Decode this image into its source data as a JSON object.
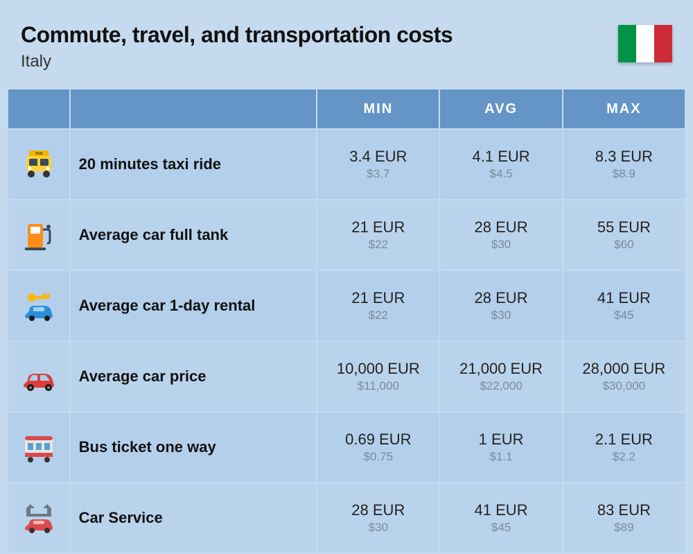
{
  "header": {
    "title": "Commute, travel, and transportation costs",
    "subtitle": "Italy"
  },
  "flag": {
    "colors": [
      "#009246",
      "#ffffff",
      "#ce2b37"
    ]
  },
  "columns": {
    "min": "MIN",
    "avg": "AVG",
    "max": "MAX"
  },
  "colors": {
    "page_bg": "#c5daef",
    "header_bg": "#6495c6",
    "header_text": "#ffffff",
    "row_bg_a": "#b3cfeb",
    "row_bg_b": "#bad3ec",
    "primary_text": "#222222",
    "secondary_text": "#7a8a9a"
  },
  "rows": [
    {
      "icon": "taxi",
      "label": "20 minutes taxi ride",
      "min": {
        "primary": "3.4 EUR",
        "secondary": "$3.7"
      },
      "avg": {
        "primary": "4.1 EUR",
        "secondary": "$4.5"
      },
      "max": {
        "primary": "8.3 EUR",
        "secondary": "$8.9"
      }
    },
    {
      "icon": "fuel",
      "label": "Average car full tank",
      "min": {
        "primary": "21 EUR",
        "secondary": "$22"
      },
      "avg": {
        "primary": "28 EUR",
        "secondary": "$30"
      },
      "max": {
        "primary": "55 EUR",
        "secondary": "$60"
      }
    },
    {
      "icon": "rental",
      "label": "Average car 1-day rental",
      "min": {
        "primary": "21 EUR",
        "secondary": "$22"
      },
      "avg": {
        "primary": "28 EUR",
        "secondary": "$30"
      },
      "max": {
        "primary": "41 EUR",
        "secondary": "$45"
      }
    },
    {
      "icon": "car",
      "label": "Average car price",
      "min": {
        "primary": "10,000 EUR",
        "secondary": "$11,000"
      },
      "avg": {
        "primary": "21,000 EUR",
        "secondary": "$22,000"
      },
      "max": {
        "primary": "28,000 EUR",
        "secondary": "$30,000"
      }
    },
    {
      "icon": "bus",
      "label": "Bus ticket one way",
      "min": {
        "primary": "0.69 EUR",
        "secondary": "$0.75"
      },
      "avg": {
        "primary": "1 EUR",
        "secondary": "$1.1"
      },
      "max": {
        "primary": "2.1 EUR",
        "secondary": "$2.2"
      }
    },
    {
      "icon": "service",
      "label": "Car Service",
      "min": {
        "primary": "28 EUR",
        "secondary": "$30"
      },
      "avg": {
        "primary": "41 EUR",
        "secondary": "$45"
      },
      "max": {
        "primary": "83 EUR",
        "secondary": "$89"
      }
    }
  ]
}
